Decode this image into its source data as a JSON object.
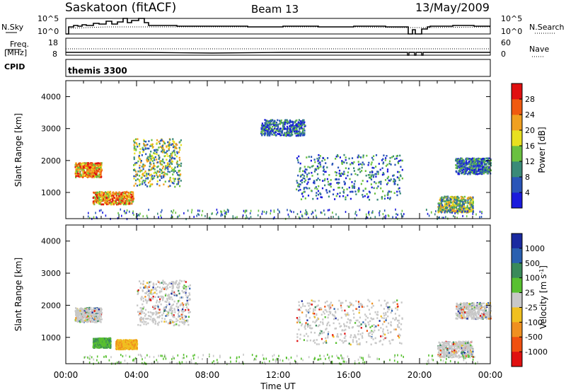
{
  "header": {
    "station": "Saskatoon (fitACF)",
    "beam": "Beam 13",
    "date": "13/May/2009"
  },
  "top_panel": {
    "nsky_label": "N.Sky",
    "nsearch_label": "N.Search",
    "freq_label_1": "Freq.",
    "freq_label_2": "[MHz]",
    "nave_label": "Nave",
    "cpid_label": "CPID",
    "cpid_value": "themis 3300",
    "noise_left_ticks": [
      "10^5",
      "10^0"
    ],
    "noise_right_ticks": [
      "10^5",
      "10^0"
    ],
    "freq_left_ticks": [
      "18",
      "8"
    ],
    "freq_right_ticks": [
      "60",
      "0"
    ]
  },
  "chart_data": [
    {
      "type": "heatmap",
      "title": "",
      "xlabel": "",
      "ylabel": "Slant Range [km]",
      "xlim_hours": [
        0,
        24
      ],
      "ylim": [
        180,
        4500
      ],
      "yticks": [
        1000,
        2000,
        3000,
        4000
      ],
      "colorbar": {
        "label": "Power [dB]",
        "ticks": [
          "4",
          "8",
          "12",
          "16",
          "20",
          "24",
          "28"
        ],
        "colors": [
          "#1a1adc",
          "#2a55b8",
          "#3a8a78",
          "#6ac040",
          "#e8e020",
          "#f0a020",
          "#f05a10",
          "#e01010"
        ]
      },
      "regions": [
        {
          "t": [
            0.5,
            2.0
          ],
          "r": [
            1500,
            1950
          ],
          "level": "high"
        },
        {
          "t": [
            1.5,
            3.8
          ],
          "r": [
            650,
            1050
          ],
          "level": "high"
        },
        {
          "t": [
            3.8,
            6.5
          ],
          "r": [
            1200,
            2700
          ],
          "level": "mid"
        },
        {
          "t": [
            11,
            13.5
          ],
          "r": [
            2800,
            3300
          ],
          "level": "low"
        },
        {
          "t": [
            13,
            19
          ],
          "r": [
            800,
            2200
          ],
          "level": "low"
        },
        {
          "t": [
            21,
            23
          ],
          "r": [
            400,
            900
          ],
          "level": "mid"
        },
        {
          "t": [
            22,
            24
          ],
          "r": [
            1600,
            2100
          ],
          "level": "low"
        }
      ]
    },
    {
      "type": "heatmap",
      "title": "",
      "xlabel": "Time UT",
      "ylabel": "Slant Range [km]",
      "xlim_hours": [
        0,
        24
      ],
      "xticks": [
        "00:00",
        "04:00",
        "08:00",
        "12:00",
        "16:00",
        "20:00",
        "00:00"
      ],
      "ylim": [
        180,
        4500
      ],
      "yticks": [
        1000,
        2000,
        3000,
        4000
      ],
      "colorbar": {
        "label": "Velocity [m s^-1]",
        "ticks": [
          "1000",
          "500",
          "100",
          "25",
          "-25",
          "-100",
          "-500",
          "-1000"
        ],
        "colors": [
          "#1a2aa0",
          "#2a60b0",
          "#3a8a5a",
          "#58c030",
          "#c8c8c8",
          "#f0c020",
          "#f09020",
          "#f05010",
          "#e01010"
        ]
      },
      "regions": [
        {
          "t": [
            0.5,
            2.0
          ],
          "r": [
            1500,
            1950
          ],
          "class": "ground"
        },
        {
          "t": [
            1.5,
            2.5
          ],
          "r": [
            700,
            1000
          ],
          "class": "positive"
        },
        {
          "t": [
            2.8,
            4.0
          ],
          "r": [
            650,
            950
          ],
          "class": "negative"
        },
        {
          "t": [
            4.0,
            7.0
          ],
          "r": [
            1400,
            2800
          ],
          "class": "ground"
        },
        {
          "t": [
            13,
            19
          ],
          "r": [
            800,
            2200
          ],
          "class": "ground"
        },
        {
          "t": [
            21,
            23
          ],
          "r": [
            400,
            900
          ],
          "class": "ground"
        },
        {
          "t": [
            22,
            24
          ],
          "r": [
            1600,
            2100
          ],
          "class": "ground"
        }
      ]
    }
  ]
}
